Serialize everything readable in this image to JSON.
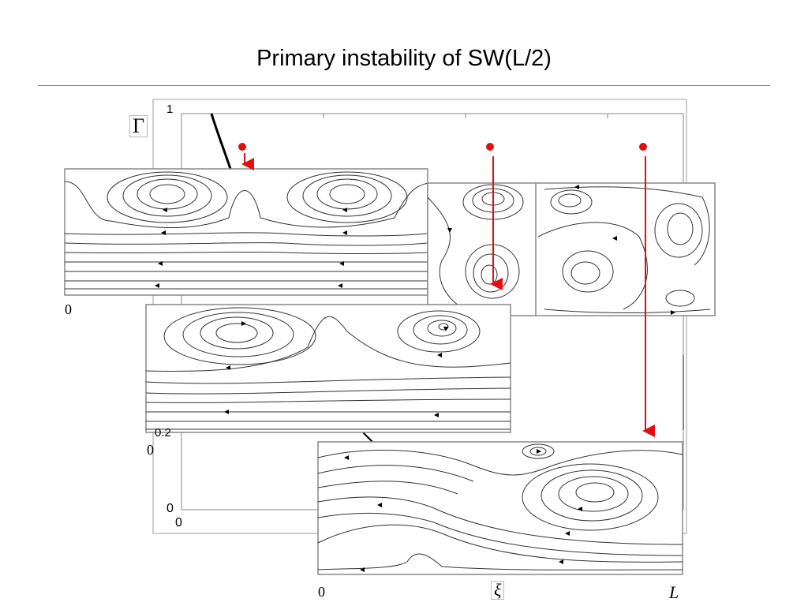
{
  "slide": {
    "title": "Primary instability of SW(L/2)"
  },
  "plot": {
    "y_axis_symbol": "Γ",
    "y_max_label": "1",
    "y_low_label": "0.2",
    "origin_x_label": "0",
    "origin_y_label": "0"
  },
  "panels": {
    "a_xlabel_left": "0",
    "b_xlabel_left": "0",
    "c_xlabel_left": "0",
    "c_xlabel_mid": "ξ",
    "c_xlabel_right": "L"
  },
  "colors": {
    "marker": "#e01010",
    "frame": "#888888",
    "streamline": "#333333"
  }
}
